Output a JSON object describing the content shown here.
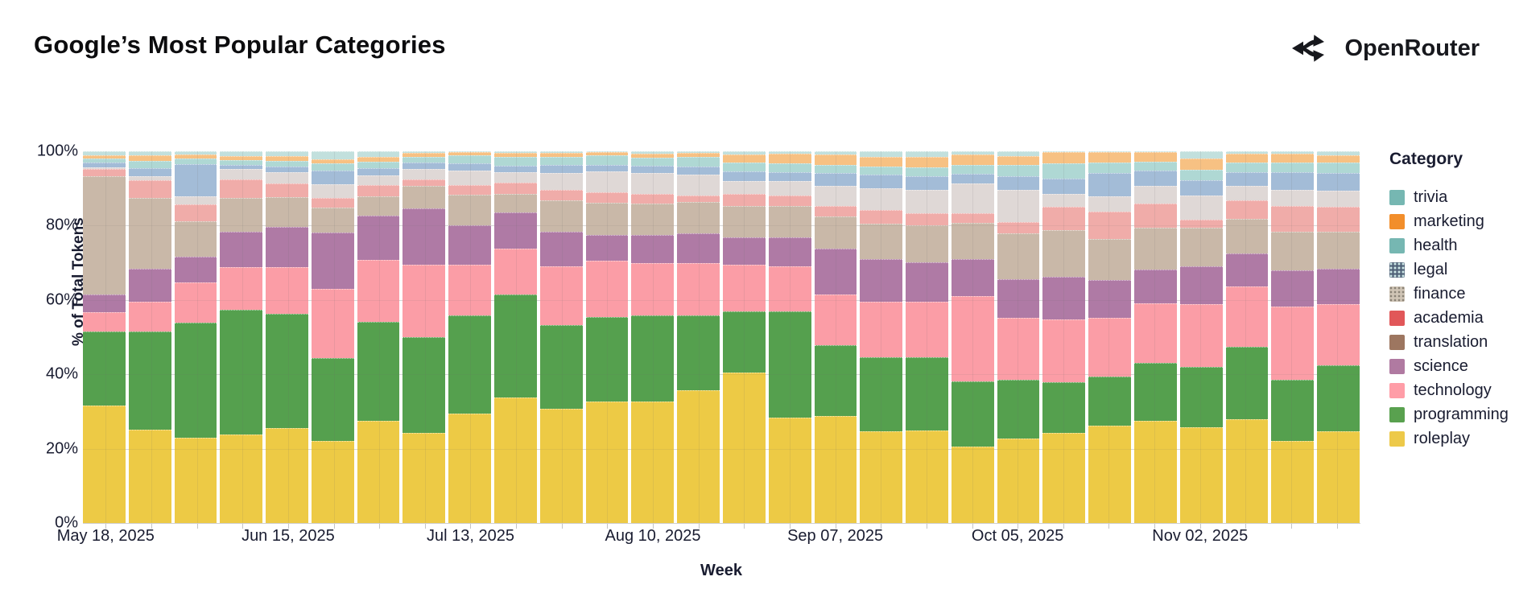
{
  "page": {
    "title": "Google’s Most Popular Categories"
  },
  "brand": {
    "name": "OpenRouter"
  },
  "chart_data": {
    "type": "bar",
    "stacked": true,
    "normalized_percent": true,
    "title": "Google’s Most Popular Categories",
    "xlabel": "Week",
    "ylabel": "% of Total Tokens",
    "ylim": [
      0,
      100
    ],
    "y_tick_labels": [
      "0%",
      "20%",
      "40%",
      "60%",
      "80%",
      "100%"
    ],
    "x_tick_labels": [
      "May 18, 2025",
      "Jun 15, 2025",
      "Jul 13, 2025",
      "Aug 10, 2025",
      "Sep 07, 2025",
      "Oct 05, 2025",
      "Nov 02, 2025"
    ],
    "x_tick_indices": [
      0,
      4,
      8,
      12,
      16,
      20,
      24
    ],
    "weeks": 28,
    "legend_title": "Category",
    "legend_position": "right",
    "grid": true,
    "series": [
      {
        "name": "trivia",
        "legend_color": "#76B7B2",
        "bar_color": "#C2E0DD",
        "legend_pattern": "none",
        "values": [
          1.1,
          1.1,
          0.8,
          1.2,
          1.3,
          2.2,
          1.6,
          0.5,
          0.3,
          0.5,
          0.4,
          0.2,
          0.7,
          0.4,
          0.9,
          0.7,
          0.8,
          1.4,
          1.6,
          0.8,
          1.2,
          0.2,
          0.3,
          0.2,
          2.0,
          0.6,
          0.7,
          1.0
        ]
      },
      {
        "name": "marketing",
        "legend_color": "#F28E2B",
        "bar_color": "#F7C183",
        "legend_pattern": "none",
        "values": [
          0.8,
          1.5,
          1.1,
          1.1,
          1.2,
          1.1,
          1.1,
          1.0,
          0.8,
          0.9,
          1.2,
          0.9,
          1.1,
          1.0,
          2.2,
          2.6,
          2.9,
          2.6,
          2.8,
          2.8,
          2.5,
          3.1,
          2.7,
          2.6,
          2.9,
          2.5,
          2.4,
          2.1
        ]
      },
      {
        "name": "health",
        "legend_color": "#76B7B2",
        "bar_color": "#AFD8D4",
        "legend_pattern": "none",
        "values": [
          1.1,
          1.9,
          1.5,
          1.3,
          1.5,
          1.9,
          1.9,
          1.6,
          2.2,
          2.4,
          2.1,
          2.6,
          2.1,
          2.7,
          2.4,
          2.4,
          2.2,
          2.2,
          2.2,
          2.4,
          2.9,
          4.0,
          2.9,
          2.4,
          2.9,
          2.5,
          2.6,
          2.7
        ]
      },
      {
        "name": "legal",
        "legend_color": "#56687D",
        "bar_color": "#A3BCD7",
        "legend_pattern": "dots-light",
        "values": [
          1.3,
          2.2,
          8.8,
          1.2,
          1.6,
          3.7,
          1.9,
          1.7,
          1.8,
          1.8,
          2.2,
          1.8,
          2.0,
          2.2,
          2.6,
          2.4,
          3.3,
          3.7,
          3.7,
          2.6,
          3.7,
          4.2,
          6.1,
          4.2,
          4.0,
          3.7,
          4.6,
          4.8
        ]
      },
      {
        "name": "finance",
        "legend_color": "#CFC4B5",
        "bar_color": "#DFD8D6",
        "legend_pattern": "dots-dark",
        "values": [
          0.5,
          1.1,
          2.1,
          2.8,
          3.0,
          3.7,
          2.6,
          2.8,
          4.0,
          2.9,
          4.4,
          5.5,
          5.5,
          5.5,
          3.3,
          3.7,
          5.5,
          5.9,
          6.3,
          8.1,
          8.8,
          3.5,
          4.2,
          4.6,
          6.6,
          4.0,
          4.4,
          4.4
        ]
      },
      {
        "name": "academia",
        "legend_color": "#E15759",
        "bar_color": "#F0ACA9",
        "legend_pattern": "none",
        "values": [
          1.9,
          4.8,
          4.6,
          5.0,
          3.7,
          2.6,
          3.0,
          1.6,
          2.6,
          2.9,
          2.9,
          2.9,
          2.6,
          1.8,
          3.3,
          2.9,
          2.9,
          3.7,
          3.3,
          2.5,
          3.0,
          6.3,
          7.4,
          6.6,
          2.2,
          4.9,
          7.0,
          6.7
        ]
      },
      {
        "name": "translation",
        "legend_color": "#9D7660",
        "bar_color": "#C9B8A8",
        "legend_pattern": "none",
        "values": [
          31.8,
          18.9,
          9.4,
          9.1,
          8.1,
          6.7,
          5.2,
          6.2,
          8.1,
          5.1,
          8.5,
          8.5,
          8.4,
          8.5,
          8.5,
          8.5,
          8.5,
          9.5,
          9.9,
          9.9,
          12.3,
          12.5,
          11.0,
          11.2,
          10.3,
          9.2,
          10.3,
          9.9
        ]
      },
      {
        "name": "science",
        "legend_color": "#B07AA1",
        "bar_color": "#AF7AA5",
        "legend_pattern": "none",
        "values": [
          4.8,
          8.9,
          6.9,
          9.4,
          10.7,
          15.2,
          11.9,
          15.1,
          10.7,
          9.6,
          9.2,
          7.0,
          7.7,
          8.0,
          7.3,
          7.7,
          12.5,
          11.4,
          10.6,
          9.9,
          10.5,
          11.4,
          10.3,
          9.0,
          10.3,
          9.0,
          9.7,
          9.6
        ]
      },
      {
        "name": "technology",
        "legend_color": "#FF9DA7",
        "bar_color": "#FB9DA6",
        "legend_pattern": "none",
        "values": [
          5.2,
          8.1,
          10.8,
          11.5,
          12.6,
          18.5,
          16.7,
          19.5,
          13.6,
          12.5,
          15.8,
          15.1,
          14.0,
          14.0,
          12.5,
          12.1,
          13.6,
          15.1,
          15.1,
          22.8,
          16.5,
          16.9,
          15.8,
          16.2,
          16.9,
          16.2,
          19.7,
          16.3
        ]
      },
      {
        "name": "programming",
        "legend_color": "#59A14F",
        "bar_color": "#55A04E",
        "legend_pattern": "none",
        "values": [
          20.0,
          26.3,
          31.0,
          33.5,
          30.7,
          22.4,
          26.7,
          25.7,
          26.5,
          27.6,
          22.6,
          22.8,
          23.2,
          20.2,
          16.6,
          28.7,
          19.1,
          19.9,
          19.5,
          17.6,
          15.8,
          13.6,
          13.2,
          15.4,
          16.2,
          19.5,
          16.5,
          17.9
        ]
      },
      {
        "name": "roleplay",
        "legend_color": "#EDC949",
        "bar_color": "#EDCA45",
        "legend_pattern": "none",
        "values": [
          31.5,
          25.2,
          23.0,
          23.9,
          25.6,
          22.0,
          27.4,
          24.3,
          29.4,
          33.8,
          30.7,
          32.7,
          32.7,
          35.7,
          40.4,
          28.3,
          28.7,
          24.6,
          25.0,
          20.6,
          22.8,
          24.3,
          26.1,
          27.6,
          25.7,
          27.9,
          22.1,
          24.6
        ]
      }
    ]
  }
}
